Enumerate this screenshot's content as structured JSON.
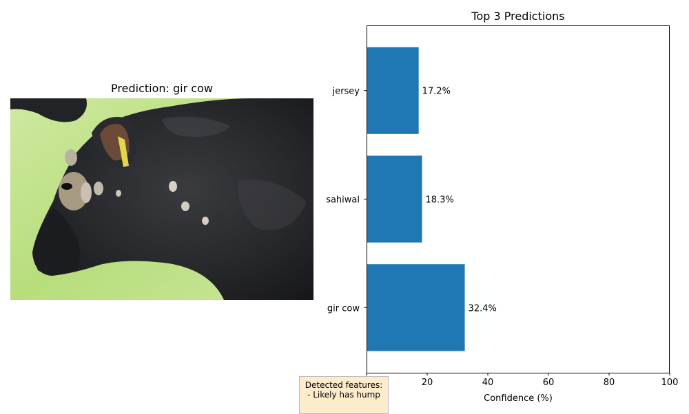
{
  "image_panel": {
    "title": "Prediction: gir cow"
  },
  "features": {
    "heading": "Detected features:",
    "items": [
      "- Likely has hump"
    ]
  },
  "chart_data": {
    "type": "bar",
    "orientation": "horizontal",
    "title": "Top 3 Predictions",
    "xlabel": "Confidence (%)",
    "ylabel": "",
    "categories": [
      "gir cow",
      "sahiwal",
      "jersey"
    ],
    "values": [
      32.4,
      18.3,
      17.2
    ],
    "value_labels": [
      "32.4%",
      "18.3%",
      "17.2%"
    ],
    "xlim": [
      0,
      100
    ],
    "xticks": [
      0,
      20,
      40,
      60,
      80,
      100
    ],
    "bar_color": "#1f77b4",
    "grid": false
  }
}
